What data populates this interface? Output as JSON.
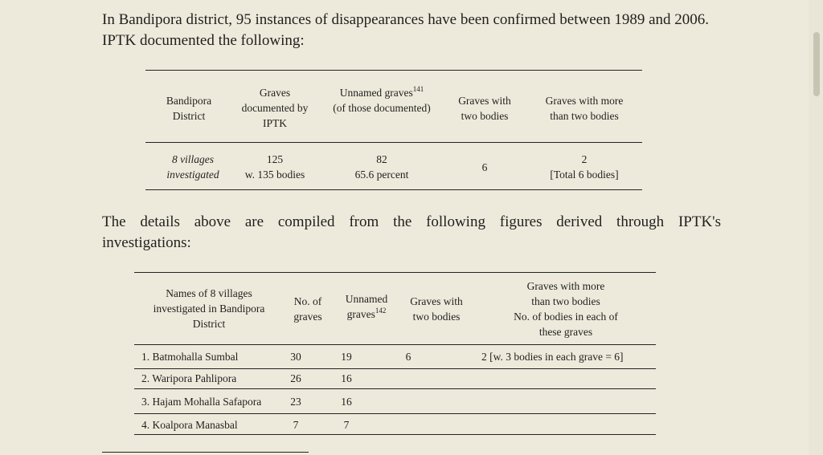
{
  "intro_text": "In Bandipora district, 95 instances of disappearances have been confirmed between 1989 and 2006. IPTK documented the following:",
  "summary_table": {
    "headers": {
      "col1": "Bandipora District",
      "col2": "Graves documented by IPTK",
      "col3_main": "Unnamed graves",
      "col3_footnote": "141",
      "col3_sub": "(of those documented)",
      "col4": "Graves with two bodies",
      "col5": "Graves with more than two bodies"
    },
    "row": {
      "col1": "8 villages investigated",
      "col2_a": "125",
      "col2_b": "w. 135 bodies",
      "col3_a": "82",
      "col3_b": "65.6 percent",
      "col4": "6",
      "col5_a": "2",
      "col5_b": "[Total 6 bodies]"
    }
  },
  "details_text_line1": "The details above are compiled from the following figures derived through IPTK's",
  "details_text_line2": "investigations:",
  "villages_table": {
    "headers": {
      "col1": "Names of 8 villages investigated in Bandipora District",
      "col2": "No. of graves",
      "col3_main": "Unnamed graves",
      "col3_footnote": "142",
      "col4": "Graves with two bodies",
      "col5_line1": "Graves with more than two bodies",
      "col5_line2": "No. of bodies in each of these graves"
    },
    "rows": [
      {
        "name": "1. Batmohalla Sumbal",
        "graves": "30",
        "unnamed": "19",
        "two": "6",
        "more": "2 [w. 3 bodies in each grave = 6]"
      },
      {
        "name": "2. Waripora Pahlipora",
        "graves": "26",
        "unnamed": "16",
        "two": "",
        "more": ""
      },
      {
        "name": "3. Hajam Mohalla Safapora",
        "graves": "23",
        "unnamed": "16",
        "two": "",
        "more": ""
      },
      {
        "name": "4. Koalpora Manasbal",
        "graves": "7",
        "unnamed": "7",
        "two": "",
        "more": ""
      }
    ]
  }
}
